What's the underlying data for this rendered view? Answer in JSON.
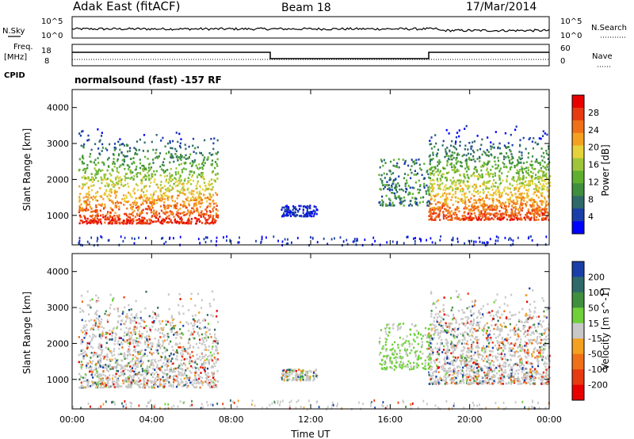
{
  "header": {
    "site": "Adak East (fitACF)",
    "beam": "Beam 18",
    "date": "17/Mar/2014"
  },
  "summary_panel": {
    "nsky_label": "N.Sky",
    "nsearch_label": "N.Search",
    "freq_label_1": "Freq.",
    "freq_label_2": "[MHz]",
    "nave_label": "Nave",
    "cpid_label": "CPID",
    "noise_ticks": [
      "10^5",
      "10^0"
    ],
    "freq_ticks": [
      "18",
      "8"
    ],
    "nave_ticks": [
      "60",
      "0"
    ],
    "cpid_text": "normalsound (fast) -157 RF"
  },
  "chart_data": [
    {
      "type": "heatmap",
      "name": "power-panel",
      "x_ticks": [
        "00:00",
        "04:00",
        "08:00",
        "12:00",
        "16:00",
        "20:00",
        "00:00"
      ],
      "xlim": [
        0,
        24
      ],
      "ylabel": "Slant Range [km]",
      "y_ticks": [
        1000,
        2000,
        3000,
        4000
      ],
      "ylim": [
        180,
        4500
      ],
      "colorbar": {
        "label": "Power [dB]",
        "ticks": [
          "4",
          "8",
          "12",
          "16",
          "20",
          "24",
          "28"
        ],
        "colors": [
          "#0000ff",
          "#1a3fa8",
          "#2f6a6a",
          "#3f8f3f",
          "#5fb02f",
          "#9fc63a",
          "#e6d23a",
          "#f4a020",
          "#f07018",
          "#e83a10",
          "#e80000"
        ]
      },
      "echo_regions": [
        {
          "t0": 0.3,
          "t1": 7.3,
          "r0": 800,
          "r1": 3500,
          "level": "strong"
        },
        {
          "t0": 17.9,
          "t1": 24,
          "r0": 900,
          "r1": 3600,
          "level": "strong"
        },
        {
          "t0": 10.5,
          "t1": 12.3,
          "r0": 1000,
          "r1": 1300,
          "level": "weak"
        },
        {
          "t0": 15.4,
          "t1": 18.0,
          "r0": 1300,
          "r1": 2600,
          "level": "medium"
        }
      ]
    },
    {
      "type": "heatmap",
      "name": "velocity-panel",
      "x_ticks": [
        "00:00",
        "04:00",
        "08:00",
        "12:00",
        "16:00",
        "20:00",
        "00:00"
      ],
      "xlim": [
        0,
        24
      ],
      "xlabel": "Time UT",
      "ylabel": "Slant Range [km]",
      "y_ticks": [
        1000,
        2000,
        3000,
        4000
      ],
      "ylim": [
        180,
        4500
      ],
      "colorbar": {
        "label": "Velocity [m s^-1]",
        "ticks": [
          "200",
          "100",
          "50",
          "15",
          "-15",
          "-50",
          "-100",
          "-200"
        ],
        "colors": [
          "#1a3fa8",
          "#2f6a6a",
          "#3f8f3f",
          "#6fd03a",
          "#c8c8c8",
          "#f4a020",
          "#f07018",
          "#e83a10",
          "#e80000"
        ]
      }
    }
  ]
}
